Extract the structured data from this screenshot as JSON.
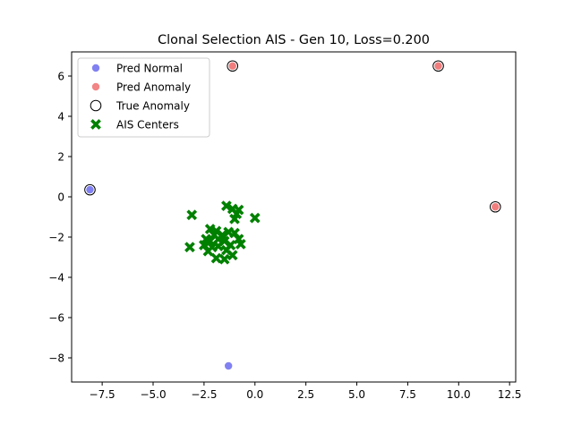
{
  "chart_data": {
    "type": "scatter",
    "title": "Clonal Selection AIS - Gen 10, Loss=0.200",
    "xlabel": "",
    "ylabel": "",
    "xlim": [
      -9.0,
      12.8
    ],
    "ylim": [
      -9.2,
      7.2
    ],
    "x_ticks": [
      -7.5,
      -5.0,
      -2.5,
      0.0,
      2.5,
      5.0,
      7.5,
      10.0,
      12.5
    ],
    "x_tick_labels": [
      "−7.5",
      "−5.0",
      "−2.5",
      "0.0",
      "2.5",
      "5.0",
      "7.5",
      "10.0",
      "12.5"
    ],
    "y_ticks": [
      6,
      4,
      2,
      0,
      -2,
      -4,
      -6,
      -8
    ],
    "y_tick_labels": [
      "6",
      "4",
      "2",
      "0",
      "−2",
      "−4",
      "−6",
      "−8"
    ],
    "grid": false,
    "legend_position": "top-left",
    "legend": [
      {
        "label": "Pred Normal",
        "marker": "circle",
        "color": "#6b6bf0"
      },
      {
        "label": "Pred Anomaly",
        "marker": "circle",
        "color": "#f07070"
      },
      {
        "label": "True Anomaly",
        "marker": "ring",
        "color": "#000000"
      },
      {
        "label": "AIS Centers",
        "marker": "x",
        "color": "#008000"
      }
    ],
    "series": [
      {
        "name": "Pred Normal",
        "color": "#6b6bf0",
        "points": [
          [
            -8.1,
            0.35
          ],
          [
            -1.3,
            -8.4
          ]
        ]
      },
      {
        "name": "Pred Anomaly",
        "color": "#f07070",
        "points": [
          [
            -1.1,
            6.5
          ],
          [
            9.0,
            6.5
          ],
          [
            11.8,
            -0.5
          ]
        ]
      },
      {
        "name": "True Anomaly",
        "color": "#000000",
        "points": [
          [
            -8.1,
            0.35
          ],
          [
            -1.1,
            6.5
          ],
          [
            9.0,
            6.5
          ],
          [
            11.8,
            -0.5
          ]
        ]
      },
      {
        "name": "AIS Centers",
        "color": "#008000",
        "points": [
          [
            -3.1,
            -0.9
          ],
          [
            -3.2,
            -2.5
          ],
          [
            -1.4,
            -0.45
          ],
          [
            -1.1,
            -0.6
          ],
          [
            -0.8,
            -0.65
          ],
          [
            -0.9,
            -0.85
          ],
          [
            -1.0,
            -1.1
          ],
          [
            0.0,
            -1.05
          ],
          [
            -2.2,
            -1.6
          ],
          [
            -1.9,
            -1.7
          ],
          [
            -2.0,
            -1.9
          ],
          [
            -1.6,
            -1.9
          ],
          [
            -1.3,
            -1.75
          ],
          [
            -1.0,
            -1.8
          ],
          [
            -2.4,
            -2.1
          ],
          [
            -2.2,
            -2.2
          ],
          [
            -1.8,
            -2.1
          ],
          [
            -1.5,
            -2.2
          ],
          [
            -0.8,
            -2.1
          ],
          [
            -0.7,
            -2.35
          ],
          [
            -2.5,
            -2.4
          ],
          [
            -2.1,
            -2.5
          ],
          [
            -1.8,
            -2.45
          ],
          [
            -1.2,
            -2.4
          ],
          [
            -2.3,
            -2.7
          ],
          [
            -1.4,
            -2.65
          ],
          [
            -1.1,
            -2.9
          ],
          [
            -1.9,
            -3.05
          ],
          [
            -1.5,
            -3.1
          ]
        ]
      }
    ]
  }
}
